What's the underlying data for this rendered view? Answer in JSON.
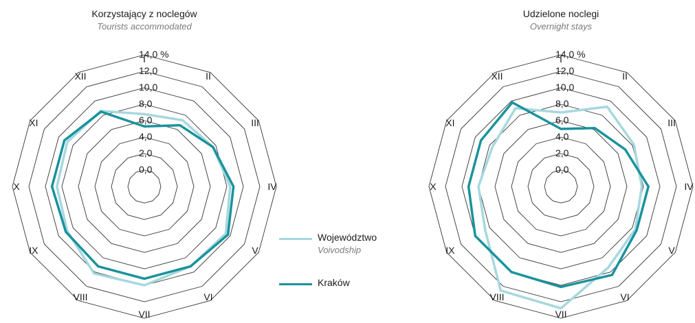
{
  "colors": {
    "wojewodztwo": "#a6d8de",
    "krakow": "#1a929c",
    "grid": "#333333"
  },
  "legend": {
    "items": [
      {
        "label": "Województwo",
        "sublabel": "Voivodship",
        "color": "#a6d8de"
      },
      {
        "label": "Kraków",
        "sublabel": "",
        "color": "#1a929c"
      }
    ]
  },
  "chart_data": [
    {
      "type": "radar",
      "title": "Korzystający z noclegów",
      "subtitle": "Tourists accommodated",
      "categories": [
        "I",
        "II",
        "III",
        "IV",
        "V",
        "VI",
        "VII",
        "VIII",
        "IX",
        "X",
        "XI",
        "XII"
      ],
      "radial_ticks": [
        "0,0",
        "2,0",
        "4,0",
        "6,0",
        "8,0",
        "10,0",
        "12,0",
        "14,0 %"
      ],
      "rmax": 14,
      "series": [
        {
          "name": "Województwo",
          "values": [
            6.8,
            7.3,
            7.6,
            8.4,
            9.4,
            9.2,
            10.0,
            10.2,
            8.8,
            8.6,
            8.8,
            8.6
          ]
        },
        {
          "name": "Kraków",
          "values": [
            5.3,
            6.6,
            7.6,
            8.8,
            9.7,
            9.2,
            9.2,
            9.2,
            9.0,
            9.2,
            9.2,
            8.5
          ]
        }
      ]
    },
    {
      "type": "radar",
      "title": "Udzielone noclegi",
      "subtitle": "Overnight stays",
      "categories": [
        "I",
        "II",
        "III",
        "IV",
        "V",
        "VI",
        "VII",
        "VIII",
        "IX",
        "X",
        "XI",
        "XII"
      ],
      "radial_ticks": [
        "0,0",
        "2,0",
        "4,0",
        "6,0",
        "8,0",
        "10,0",
        "12,0",
        "14,0 %"
      ],
      "rmax": 14,
      "series": [
        {
          "name": "Województwo",
          "values": [
            7.0,
            9.2,
            8.2,
            7.8,
            8.4,
            9.4,
            12.8,
            12.6,
            8.6,
            8.0,
            7.6,
            9.0
          ]
        },
        {
          "name": "Kraków",
          "values": [
            5.0,
            6.2,
            7.0,
            8.6,
            8.6,
            10.4,
            10.2,
            10.0,
            10.0,
            9.2,
            9.2,
            9.8
          ]
        }
      ]
    }
  ]
}
